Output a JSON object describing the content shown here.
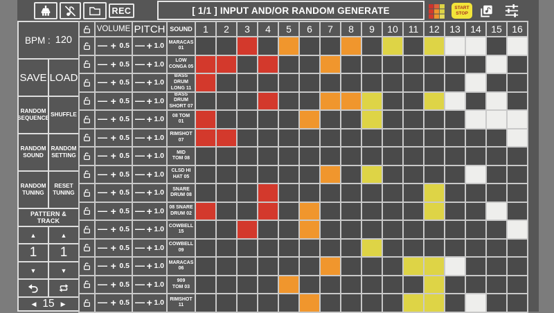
{
  "toolbar": {
    "rec": "REC",
    "title": "[ 1/1 ] INPUT AND/OR RANDOM GENERATE",
    "start": "START",
    "stop": "STOP",
    "icons": [
      "brush-icon",
      "note-off-icon",
      "folder-icon",
      "color-grid-icon",
      "start-stop-button",
      "copy-note-icon",
      "sliders-icon"
    ]
  },
  "sidebar": {
    "bpm_label": "BPM :",
    "bpm_value": "120",
    "save": "SAVE",
    "load": "LOAD",
    "random_sequence": "RANDOM\nSEQUENCE",
    "shuffle": "SHUFFLE",
    "random_sound": "RANDOM\nSOUND",
    "random_setting": "RANDOM\nSETTING",
    "random_tuning": "RANDOM\nTUNING",
    "reset_tuning": "RESET\nTUNING",
    "pattern_track": "PATTERN & TRACK",
    "pattern_value": "1",
    "track_value": "1",
    "page_value": "15",
    "up_arrow": "▲",
    "down_arrow": "▼",
    "left_arrow": "◀",
    "right_arrow": "▶"
  },
  "table": {
    "volume_header": "VOLUME",
    "pitch_header": "PITCH",
    "sound_header": "SOUND",
    "minus_sign": "—",
    "plus_sign": "+",
    "step_numbers": [
      "1",
      "2",
      "3",
      "4",
      "5",
      "6",
      "7",
      "8",
      "9",
      "10",
      "11",
      "12",
      "13",
      "14",
      "15",
      "16"
    ],
    "rows": [
      {
        "sound": "MARACAS\n01",
        "volume": "0.5",
        "pitch": "1.0",
        "cells": "..r.o..o.y.yww.w"
      },
      {
        "sound": "LOW\nCONGA 05",
        "volume": "0.5",
        "pitch": "1.0",
        "cells": "rr.r..o.......w."
      },
      {
        "sound": "BASS DRUM\nLONG 11",
        "volume": "0.5",
        "pitch": "1.0",
        "cells": "r............w.."
      },
      {
        "sound": "BASS DRUM\nSHORT 07",
        "volume": "0.5",
        "pitch": "1.0",
        "cells": "...r..ooy..yw.w."
      },
      {
        "sound": "08 TOM\n01",
        "volume": "0.5",
        "pitch": "1.0",
        "cells": "r....o..y....www"
      },
      {
        "sound": "RIMSHOT\n07",
        "volume": "0.5",
        "pitch": "1.0",
        "cells": "rr.............w"
      },
      {
        "sound": "MID\nTOM 08",
        "volume": "0.5",
        "pitch": "1.0",
        "cells": "................"
      },
      {
        "sound": "CLSD HI\nHAT 05",
        "volume": "0.5",
        "pitch": "1.0",
        "cells": "......o.y....w.."
      },
      {
        "sound": "SNARE\nDRUM 08",
        "volume": "0.5",
        "pitch": "1.0",
        "cells": "...r.......y...."
      },
      {
        "sound": "08 SNARE\nDRUM 02",
        "volume": "0.5",
        "pitch": "1.0",
        "cells": "r..r.o.....y..w."
      },
      {
        "sound": "COWBELL\n15",
        "volume": "0.5",
        "pitch": "1.0",
        "cells": "..r..o.........w"
      },
      {
        "sound": "COWBELL\n09",
        "volume": "0.5",
        "pitch": "1.0",
        "cells": "........y......."
      },
      {
        "sound": "MARACAS\n06",
        "volume": "0.5",
        "pitch": "1.0",
        "cells": "......o...yyw..."
      },
      {
        "sound": "909\nTOM 03",
        "volume": "0.5",
        "pitch": "1.0",
        "cells": "....o......y...."
      },
      {
        "sound": "RIMSHOT\n11",
        "volume": "0.5",
        "pitch": "1.0",
        "cells": ".....o....yy.w.."
      }
    ]
  },
  "colors": {
    "r": "#d3392c",
    "o": "#f0962d",
    "y": "#ded446",
    "w": "#eeeeec",
    "empty": "#4a4a4a"
  }
}
